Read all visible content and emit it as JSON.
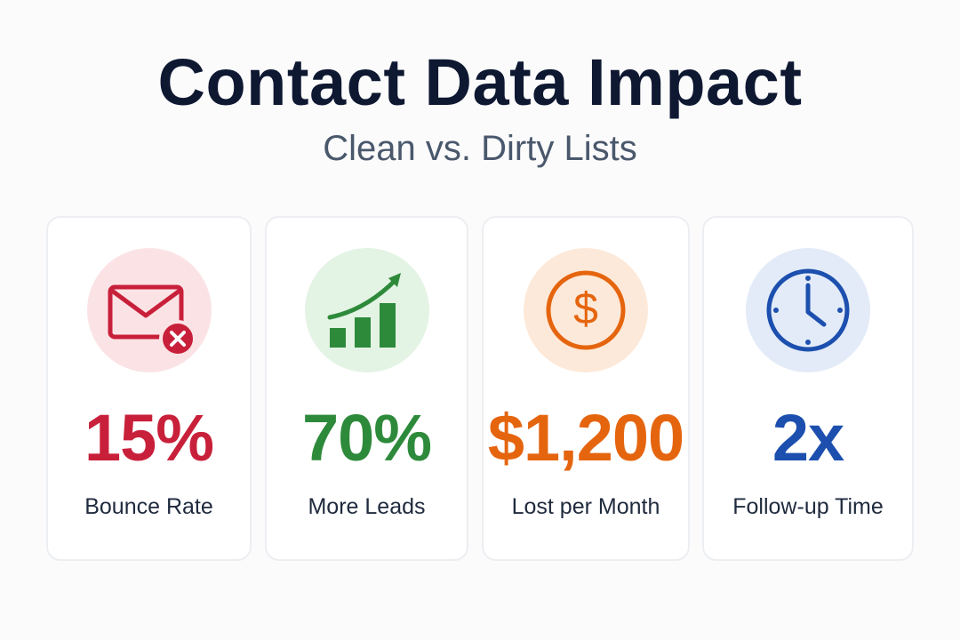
{
  "header": {
    "title": "Contact Data Impact",
    "subtitle": "Clean vs. Dirty Lists"
  },
  "cards": [
    {
      "value": "15%",
      "label": "Bounce Rate"
    },
    {
      "value": "70%",
      "label": "More Leads"
    },
    {
      "value": "$1,200",
      "label": "Lost per Month"
    },
    {
      "value": "2x",
      "label": "Follow-up Time"
    }
  ]
}
